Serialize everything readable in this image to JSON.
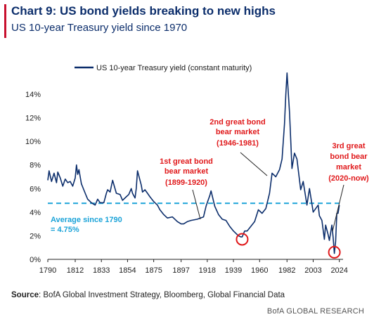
{
  "header": {
    "title": "Chart 9: US bond yields breaking to new highs",
    "subtitle": "US 10-year Treasury yield since 1970"
  },
  "footer": {
    "source_label": "Source",
    "source_text": ": BofA Global Investment Strategy, Bloomberg, Global Financial Data",
    "brand": "BofA GLOBAL RESEARCH"
  },
  "colors": {
    "series": "#0b2d6b",
    "average": "#1ba3d8",
    "annotation": "#e0191b",
    "accent": "#c8102e"
  },
  "chart_data": {
    "type": "line",
    "title": "",
    "xlabel": "",
    "ylabel": "",
    "xlim": [
      1790,
      2027
    ],
    "ylim": [
      0,
      16.5
    ],
    "xticks": [
      "1790",
      "1812",
      "1833",
      "1854",
      "1875",
      "1897",
      "1918",
      "1939",
      "1960",
      "1982",
      "2003",
      "2024"
    ],
    "yticks": [
      "0%",
      "2%",
      "4%",
      "6%",
      "8%",
      "10%",
      "12%",
      "14%"
    ],
    "ytick_values": [
      0,
      2,
      4,
      6,
      8,
      10,
      12,
      14
    ],
    "grid": false,
    "legend_position": "top-left",
    "series": [
      {
        "name": "US 10-year Treasury yield (constant maturity)",
        "x": [
          1790,
          1791,
          1793,
          1795,
          1797,
          1798,
          1800,
          1802,
          1804,
          1806,
          1808,
          1810,
          1812,
          1813,
          1814,
          1815,
          1817,
          1820,
          1822,
          1825,
          1828,
          1830,
          1832,
          1835,
          1837,
          1838,
          1840,
          1842,
          1845,
          1848,
          1850,
          1853,
          1855,
          1857,
          1858,
          1860,
          1861,
          1862,
          1865,
          1866,
          1868,
          1870,
          1872,
          1875,
          1878,
          1880,
          1883,
          1886,
          1890,
          1894,
          1897,
          1899,
          1902,
          1905,
          1910,
          1915,
          1917,
          1918,
          1920,
          1921,
          1924,
          1927,
          1930,
          1933,
          1936,
          1939,
          1941,
          1943,
          1945,
          1946,
          1948,
          1950,
          1953,
          1956,
          1959,
          1962,
          1965,
          1968,
          1970,
          1973,
          1976,
          1978,
          1980,
          1981,
          1982,
          1984,
          1986,
          1988,
          1990,
          1993,
          1995,
          1998,
          2000,
          2003,
          2005,
          2007,
          2008,
          2010,
          2012,
          2013,
          2015,
          2016,
          2018,
          2019,
          2020,
          2021,
          2022,
          2023,
          2024
        ],
        "values": [
          6.7,
          7.5,
          6.6,
          7.3,
          6.5,
          7.4,
          6.9,
          6.2,
          6.8,
          6.5,
          6.6,
          6.2,
          6.9,
          8.0,
          7.2,
          7.6,
          6.4,
          5.6,
          5.1,
          4.8,
          4.6,
          5.1,
          4.8,
          4.8,
          5.6,
          5.9,
          5.7,
          6.7,
          5.6,
          5.5,
          5.0,
          5.3,
          5.5,
          6.0,
          5.6,
          5.2,
          6.0,
          7.5,
          6.3,
          5.7,
          5.9,
          5.6,
          5.3,
          4.9,
          4.6,
          4.2,
          3.8,
          3.5,
          3.6,
          3.2,
          3.0,
          3.0,
          3.2,
          3.3,
          3.4,
          3.6,
          4.5,
          4.8,
          5.4,
          5.8,
          4.5,
          3.8,
          3.4,
          3.3,
          2.8,
          2.4,
          2.2,
          2.0,
          1.9,
          1.9,
          2.4,
          2.4,
          2.8,
          3.2,
          4.2,
          3.9,
          4.3,
          5.6,
          7.3,
          7.0,
          7.6,
          8.5,
          11.5,
          13.9,
          15.8,
          12.5,
          7.7,
          9.0,
          8.5,
          5.9,
          6.6,
          4.6,
          6.0,
          4.0,
          4.3,
          4.6,
          3.7,
          3.3,
          1.7,
          2.9,
          2.1,
          1.6,
          2.9,
          1.9,
          0.5,
          1.5,
          3.9,
          3.9,
          4.6
        ]
      }
    ],
    "average_line": {
      "label_line1": "Average since 1790",
      "label_line2": "= 4.75%",
      "value": 4.75
    },
    "annotations": [
      {
        "lines": [
          "1st great bond",
          "bear market",
          "(1899-1920)"
        ]
      },
      {
        "lines": [
          "2nd great bond",
          "bear market",
          "(1946-1981)"
        ]
      },
      {
        "lines": [
          "3rd great",
          "bond bear",
          "market",
          "(2020-now)"
        ]
      }
    ],
    "circles": [
      {
        "year": 1946,
        "value": 1.7
      },
      {
        "year": 2020,
        "value": 0.6
      }
    ]
  }
}
